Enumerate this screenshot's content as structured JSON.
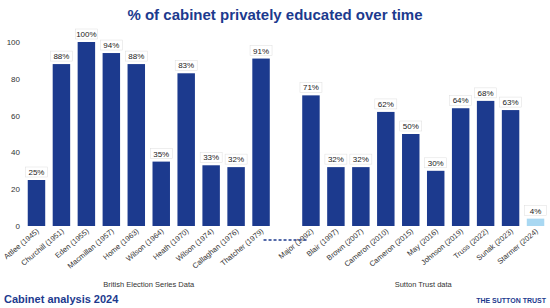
{
  "chart_data": {
    "type": "bar",
    "title": "% of cabinet privately educated over time",
    "categories": [
      "Attlee (1945)",
      "Churchill (1951)",
      "Eden (1955)",
      "Macmillan (1957)",
      "Home (1963)",
      "Wilson (1964)",
      "Heath (1970)",
      "Wilson (1974)",
      "Callaghan (1976)",
      "Thatcher (1979)",
      null,
      "Major (1992)",
      "Blair (1997)",
      "Brown (2007)",
      "Cameron (2010)",
      "Cameron (2015)",
      "May (2016)",
      "Johnson (2019)",
      "Truss (2022)",
      "Sunak (2023)",
      "Starmer (2024)"
    ],
    "values": [
      25,
      88,
      100,
      94,
      88,
      35,
      83,
      33,
      32,
      91,
      null,
      71,
      32,
      32,
      62,
      50,
      30,
      64,
      68,
      63,
      4
    ],
    "value_labels": [
      "25%",
      "88%",
      "100%",
      "94%",
      "88%",
      "35%",
      "83%",
      "33%",
      "32%",
      "91%",
      null,
      "71%",
      "32%",
      "32%",
      "62%",
      "50%",
      "30%",
      "64%",
      "68%",
      "63%",
      "4%"
    ],
    "colors": [
      "#1c3a8e",
      "#1c3a8e",
      "#1c3a8e",
      "#1c3a8e",
      "#1c3a8e",
      "#1c3a8e",
      "#1c3a8e",
      "#1c3a8e",
      "#1c3a8e",
      "#1c3a8e",
      "#1c3a8e",
      "#1c3a8e",
      "#1c3a8e",
      "#1c3a8e",
      "#1c3a8e",
      "#1c3a8e",
      "#1c3a8e",
      "#1c3a8e",
      "#1c3a8e",
      "#1c3a8e",
      "#a9d8f2"
    ],
    "ylim": [
      0,
      100
    ],
    "yticks": [
      0,
      20,
      40,
      60,
      80,
      100
    ],
    "grid": false,
    "data_labels": true,
    "annotations": [
      "British Election Series Data",
      "Sutton Trust data",
      "Cabinet analysis 2024",
      "THE SUTTON TRUST"
    ]
  }
}
